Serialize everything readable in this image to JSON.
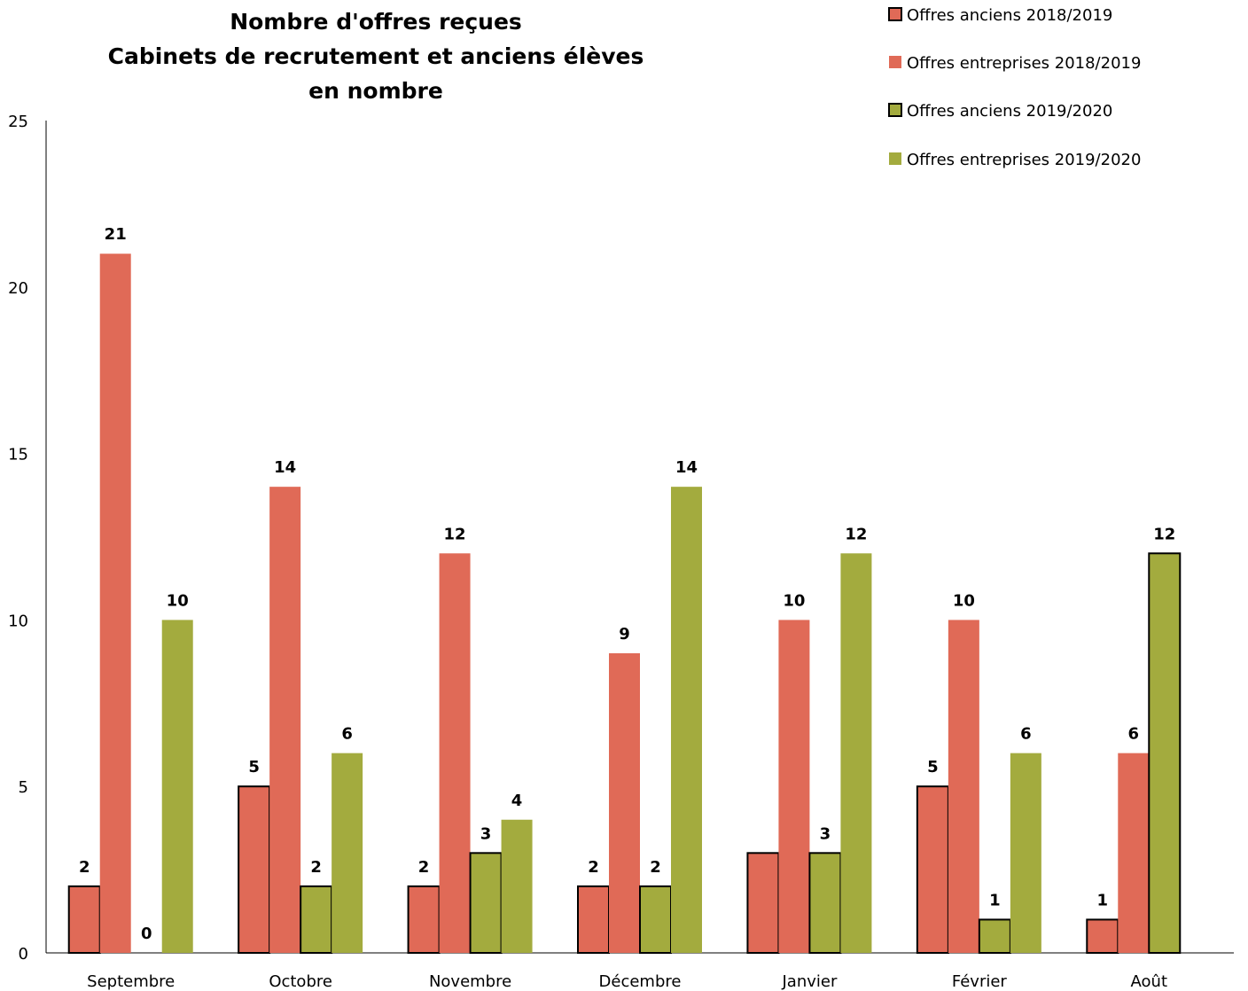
{
  "chart_data": {
    "type": "bar",
    "title_lines": [
      "Nombre d'offres reçues",
      "Cabinets de recrutement et anciens élèves",
      "en nombre"
    ],
    "categories": [
      "Septembre",
      "Octobre",
      "Novembre",
      "Décembre",
      "Janvier",
      "Février",
      "Août"
    ],
    "series": [
      {
        "name": "Offres anciens 2018/2019",
        "color": "#e06a57",
        "outlined": true,
        "values": [
          2,
          5,
          2,
          2,
          3,
          5,
          1
        ],
        "labels": [
          "2",
          "5",
          "2",
          "2",
          "",
          "5",
          "1"
        ]
      },
      {
        "name": "Offres entreprises 2018/2019",
        "color": "#e06a57",
        "outlined": false,
        "values": [
          21,
          14,
          12,
          9,
          10,
          10,
          6
        ],
        "labels": [
          "21",
          "14",
          "12",
          "9",
          "10",
          "10",
          "6"
        ]
      },
      {
        "name": "Offres anciens 2019/2020",
        "color": "#a3ab3e",
        "outlined": true,
        "values": [
          0,
          2,
          3,
          2,
          3,
          1,
          12
        ],
        "labels": [
          "0",
          "2",
          "3",
          "2",
          "3",
          "1",
          "12"
        ]
      },
      {
        "name": "Offres entreprises 2019/2020",
        "color": "#a3ab3e",
        "outlined": false,
        "values": [
          10,
          6,
          4,
          14,
          12,
          6,
          null
        ],
        "labels": [
          "10",
          "6",
          "4",
          "14",
          "12",
          "6",
          ""
        ]
      }
    ],
    "ylim": [
      0,
      25
    ],
    "yticks": [
      "0",
      "5",
      "10",
      "15",
      "20",
      "25"
    ],
    "xlabel": "",
    "ylabel": "",
    "grid": false,
    "legend_position": "top-right"
  }
}
